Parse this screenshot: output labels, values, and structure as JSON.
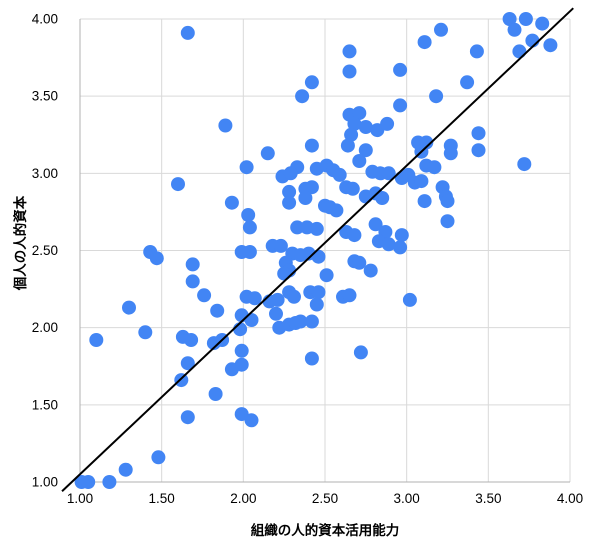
{
  "chart_data": {
    "type": "scatter",
    "title": "",
    "xlabel": "組織の人的資本活用能力",
    "ylabel": "個人の人的資本",
    "xlim": [
      1.0,
      4.0
    ],
    "ylim": [
      1.0,
      4.0
    ],
    "xticks": [
      "1.00",
      "1.50",
      "2.00",
      "2.50",
      "3.00",
      "3.50",
      "4.00"
    ],
    "yticks": [
      "1.00",
      "1.50",
      "2.00",
      "2.50",
      "3.00",
      "3.50",
      "4.00"
    ],
    "grid": true,
    "legend_position": "none",
    "point_radius": 7,
    "colors": {
      "point": "#4285f4",
      "grid": "#d9d9d9",
      "axis": "#b0b0b0",
      "trendline": "#000000",
      "background": "#ffffff",
      "label": "#000000"
    },
    "trendline": {
      "type": "linear",
      "slope": 1.0,
      "from": [
        0.89,
        0.94
      ],
      "to": [
        4.02,
        4.07
      ]
    },
    "points": [
      [
        1.66,
        3.91
      ],
      [
        1.89,
        3.31
      ],
      [
        2.65,
        3.79
      ],
      [
        2.65,
        3.66
      ],
      [
        2.96,
        3.67
      ],
      [
        2.42,
        3.59
      ],
      [
        2.36,
        3.5
      ],
      [
        2.65,
        3.38
      ],
      [
        2.71,
        3.39
      ],
      [
        2.68,
        3.32
      ],
      [
        2.75,
        3.3
      ],
      [
        2.82,
        3.28
      ],
      [
        2.88,
        3.32
      ],
      [
        2.66,
        3.25
      ],
      [
        2.64,
        3.18
      ],
      [
        2.75,
        3.15
      ],
      [
        2.42,
        3.18
      ],
      [
        2.15,
        3.13
      ],
      [
        2.71,
        3.08
      ],
      [
        3.63,
        4.0
      ],
      [
        3.73,
        4.0
      ],
      [
        3.83,
        3.97
      ],
      [
        3.66,
        3.93
      ],
      [
        3.77,
        3.86
      ],
      [
        3.88,
        3.83
      ],
      [
        3.69,
        3.79
      ],
      [
        3.21,
        3.93
      ],
      [
        3.11,
        3.85
      ],
      [
        3.43,
        3.79
      ],
      [
        3.37,
        3.59
      ],
      [
        3.18,
        3.5
      ],
      [
        2.96,
        3.44
      ],
      [
        3.44,
        3.26
      ],
      [
        3.07,
        3.2
      ],
      [
        3.12,
        3.2
      ],
      [
        3.09,
        3.14
      ],
      [
        3.27,
        3.18
      ],
      [
        3.27,
        3.13
      ],
      [
        3.44,
        3.15
      ],
      [
        3.72,
        3.06
      ],
      [
        1.6,
        2.93
      ],
      [
        1.93,
        2.81
      ],
      [
        1.43,
        2.49
      ],
      [
        1.47,
        2.45
      ],
      [
        1.69,
        2.41
      ],
      [
        1.69,
        2.3
      ],
      [
        1.76,
        2.21
      ],
      [
        1.3,
        2.13
      ],
      [
        1.84,
        2.11
      ],
      [
        2.02,
        3.04
      ],
      [
        2.33,
        3.04
      ],
      [
        2.45,
        3.03
      ],
      [
        2.51,
        3.05
      ],
      [
        2.55,
        3.02
      ],
      [
        2.59,
        2.99
      ],
      [
        2.24,
        2.98
      ],
      [
        2.29,
        3.0
      ],
      [
        2.79,
        3.01
      ],
      [
        2.84,
        3.0
      ],
      [
        2.89,
        3.0
      ],
      [
        2.63,
        2.91
      ],
      [
        2.67,
        2.9
      ],
      [
        2.28,
        2.88
      ],
      [
        2.38,
        2.9
      ],
      [
        2.42,
        2.91
      ],
      [
        2.28,
        2.81
      ],
      [
        2.38,
        2.84
      ],
      [
        2.5,
        2.79
      ],
      [
        2.53,
        2.78
      ],
      [
        2.75,
        2.85
      ],
      [
        2.81,
        2.87
      ],
      [
        2.85,
        2.84
      ],
      [
        2.57,
        2.76
      ],
      [
        2.03,
        2.73
      ],
      [
        2.04,
        2.65
      ],
      [
        2.33,
        2.65
      ],
      [
        2.39,
        2.65
      ],
      [
        2.45,
        2.64
      ],
      [
        2.63,
        2.62
      ],
      [
        2.68,
        2.6
      ],
      [
        2.81,
        2.67
      ],
      [
        2.87,
        2.62
      ],
      [
        2.83,
        2.56
      ],
      [
        2.89,
        2.54
      ],
      [
        2.18,
        2.53
      ],
      [
        2.23,
        2.53
      ],
      [
        1.99,
        2.49
      ],
      [
        2.04,
        2.49
      ],
      [
        2.3,
        2.48
      ],
      [
        2.35,
        2.47
      ],
      [
        2.4,
        2.48
      ],
      [
        2.46,
        2.46
      ],
      [
        2.26,
        2.42
      ],
      [
        2.28,
        2.37
      ],
      [
        2.25,
        2.35
      ],
      [
        2.51,
        2.34
      ],
      [
        2.68,
        2.43
      ],
      [
        2.71,
        2.42
      ],
      [
        2.78,
        2.37
      ],
      [
        2.02,
        2.2
      ],
      [
        2.07,
        2.19
      ],
      [
        2.16,
        2.17
      ],
      [
        2.21,
        2.18
      ],
      [
        2.28,
        2.23
      ],
      [
        2.31,
        2.2
      ],
      [
        2.41,
        2.23
      ],
      [
        2.46,
        2.23
      ],
      [
        2.45,
        2.15
      ],
      [
        2.61,
        2.2
      ],
      [
        2.65,
        2.21
      ],
      [
        1.99,
        2.08
      ],
      [
        2.05,
        2.05
      ],
      [
        2.2,
        2.09
      ],
      [
        3.12,
        3.05
      ],
      [
        3.17,
        3.04
      ],
      [
        3.01,
        2.99
      ],
      [
        2.97,
        2.97
      ],
      [
        3.05,
        2.94
      ],
      [
        3.09,
        2.95
      ],
      [
        3.22,
        2.91
      ],
      [
        3.24,
        2.85
      ],
      [
        3.25,
        2.82
      ],
      [
        3.11,
        2.82
      ],
      [
        3.25,
        2.69
      ],
      [
        2.97,
        2.6
      ],
      [
        2.96,
        2.52
      ],
      [
        3.02,
        2.18
      ],
      [
        1.4,
        1.97
      ],
      [
        1.1,
        1.92
      ],
      [
        1.63,
        1.94
      ],
      [
        1.68,
        1.92
      ],
      [
        1.82,
        1.9
      ],
      [
        1.87,
        1.92
      ],
      [
        1.66,
        1.77
      ],
      [
        1.93,
        1.73
      ],
      [
        1.62,
        1.66
      ],
      [
        1.83,
        1.57
      ],
      [
        1.66,
        1.42
      ],
      [
        1.48,
        1.16
      ],
      [
        1.28,
        1.08
      ],
      [
        2.22,
        2.0
      ],
      [
        2.28,
        2.02
      ],
      [
        2.32,
        2.03
      ],
      [
        2.35,
        2.04
      ],
      [
        2.42,
        2.04
      ],
      [
        1.98,
        1.99
      ],
      [
        1.99,
        1.85
      ],
      [
        1.99,
        1.76
      ],
      [
        2.42,
        1.8
      ],
      [
        2.72,
        1.84
      ],
      [
        1.99,
        1.44
      ],
      [
        2.05,
        1.4
      ],
      [
        1.01,
        1.0
      ],
      [
        1.05,
        1.0
      ],
      [
        1.18,
        1.0
      ]
    ]
  }
}
